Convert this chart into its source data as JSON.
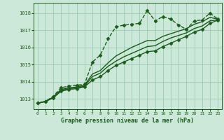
{
  "title": "Graphe pression niveau de la mer (hPa)",
  "bg_color": "#cce8d8",
  "grid_color": "#99ccb0",
  "line_color": "#1a5c1a",
  "xlim": [
    -0.5,
    23.5
  ],
  "ylim": [
    1012.4,
    1018.6
  ],
  "yticks": [
    1013,
    1014,
    1015,
    1016,
    1017,
    1018
  ],
  "xticks": [
    0,
    1,
    2,
    3,
    4,
    5,
    6,
    7,
    8,
    9,
    10,
    11,
    12,
    13,
    14,
    15,
    16,
    17,
    18,
    19,
    20,
    21,
    22,
    23
  ],
  "series": [
    {
      "x": [
        0,
        1,
        2,
        3,
        4,
        5,
        6,
        7,
        8,
        9,
        10,
        11,
        12,
        13,
        14,
        15,
        16,
        17,
        18,
        19,
        20,
        21,
        22,
        23
      ],
      "y": [
        1012.75,
        1012.85,
        1013.15,
        1013.65,
        1013.75,
        1013.8,
        1013.85,
        1015.15,
        1015.55,
        1016.5,
        1017.2,
        1017.3,
        1017.35,
        1017.4,
        1018.15,
        1017.55,
        1017.8,
        1017.65,
        1017.3,
        1017.05,
        1017.55,
        1017.6,
        1018.0,
        1017.65
      ],
      "marker": "D",
      "markersize": 2.5,
      "linestyle": "--",
      "linewidth": 1.0
    },
    {
      "x": [
        0,
        1,
        2,
        3,
        4,
        5,
        6,
        7,
        8,
        9,
        10,
        11,
        12,
        13,
        14,
        15,
        16,
        17,
        18,
        19,
        20,
        21,
        22,
        23
      ],
      "y": [
        1012.75,
        1012.85,
        1013.1,
        1013.55,
        1013.65,
        1013.7,
        1013.8,
        1014.45,
        1014.65,
        1015.1,
        1015.5,
        1015.75,
        1016.0,
        1016.2,
        1016.4,
        1016.4,
        1016.65,
        1016.8,
        1016.95,
        1017.1,
        1017.35,
        1017.5,
        1017.75,
        1017.65
      ],
      "marker": null,
      "markersize": 0,
      "linestyle": "-",
      "linewidth": 1.0
    },
    {
      "x": [
        0,
        1,
        2,
        3,
        4,
        5,
        6,
        7,
        8,
        9,
        10,
        11,
        12,
        13,
        14,
        15,
        16,
        17,
        18,
        19,
        20,
        21,
        22,
        23
      ],
      "y": [
        1012.75,
        1012.85,
        1013.1,
        1013.5,
        1013.6,
        1013.65,
        1013.75,
        1014.3,
        1014.5,
        1014.9,
        1015.2,
        1015.45,
        1015.65,
        1015.85,
        1016.05,
        1016.1,
        1016.35,
        1016.55,
        1016.7,
        1016.85,
        1017.1,
        1017.25,
        1017.55,
        1017.6
      ],
      "marker": null,
      "markersize": 0,
      "linestyle": "-",
      "linewidth": 1.0
    },
    {
      "x": [
        0,
        1,
        2,
        3,
        4,
        5,
        6,
        7,
        8,
        9,
        10,
        11,
        12,
        13,
        14,
        15,
        16,
        17,
        18,
        19,
        20,
        21,
        22,
        23
      ],
      "y": [
        1012.75,
        1012.85,
        1013.05,
        1013.45,
        1013.55,
        1013.6,
        1013.7,
        1014.1,
        1014.3,
        1014.65,
        1014.95,
        1015.15,
        1015.35,
        1015.55,
        1015.75,
        1015.8,
        1016.05,
        1016.25,
        1016.45,
        1016.65,
        1016.9,
        1017.05,
        1017.4,
        1017.6
      ],
      "marker": "D",
      "markersize": 2.5,
      "linestyle": "-",
      "linewidth": 1.0
    }
  ]
}
